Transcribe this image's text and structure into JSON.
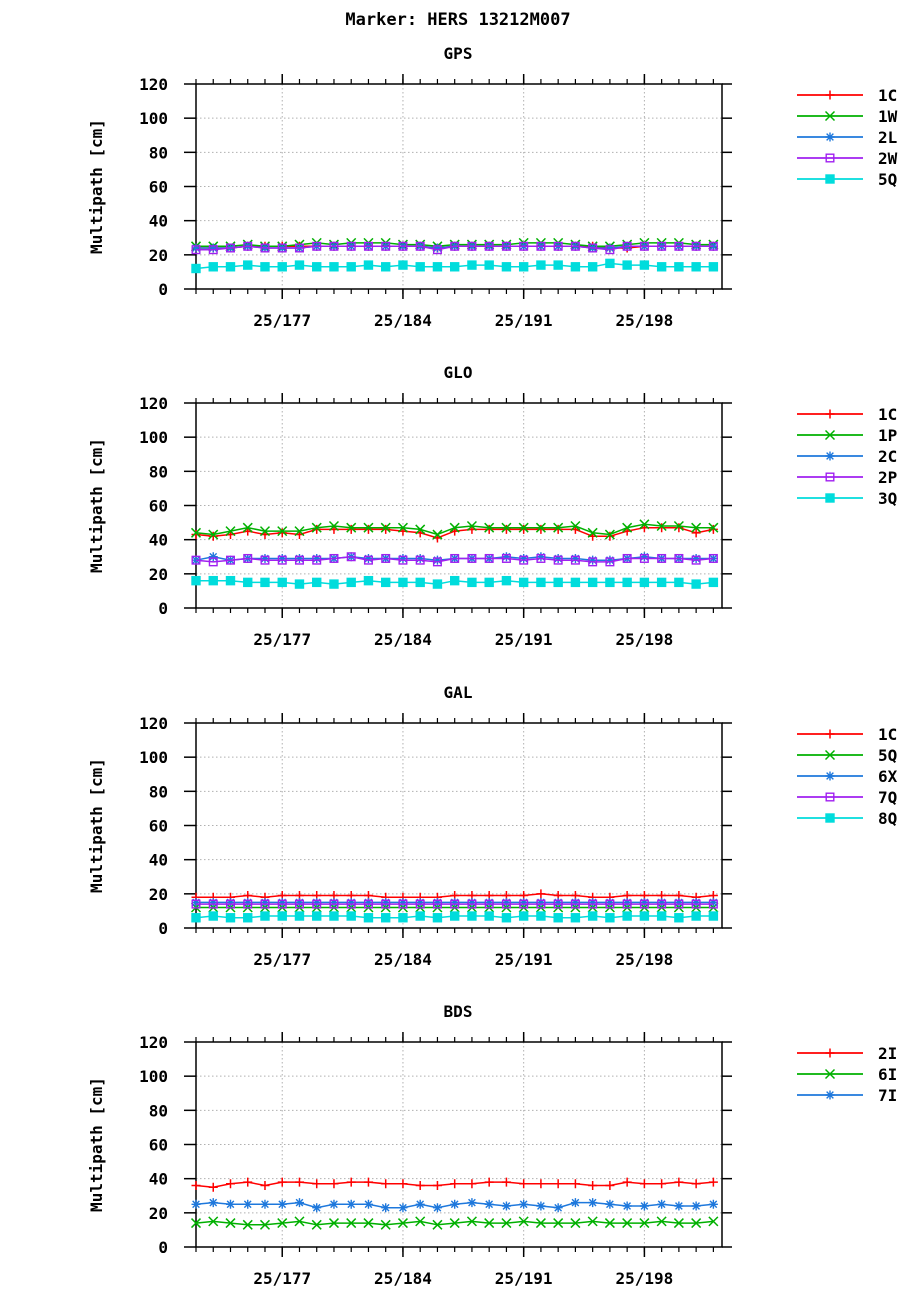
{
  "page_title": "Marker: HERS 13212M007",
  "chart_data": [
    {
      "type": "line",
      "title": "GPS",
      "ylabel": "Multipath [cm]",
      "xlabel": "",
      "ylim": [
        0,
        120
      ],
      "yticks": [
        0,
        20,
        40,
        60,
        80,
        100,
        120
      ],
      "xlim": [
        172,
        202.5
      ],
      "xticks": [
        {
          "value": 177,
          "label": "25/177"
        },
        {
          "value": 184,
          "label": "25/184"
        },
        {
          "value": 191,
          "label": "25/191"
        },
        {
          "value": 198,
          "label": "25/198"
        }
      ],
      "grid": true,
      "legend": "right",
      "x": [
        172,
        173,
        174,
        175,
        176,
        177,
        178,
        179,
        180,
        181,
        182,
        183,
        184,
        185,
        186,
        187,
        188,
        189,
        190,
        191,
        192,
        193,
        194,
        195,
        196,
        197,
        198,
        199,
        200,
        201,
        202
      ],
      "series": [
        {
          "name": "1C",
          "color": "#ff0000",
          "marker": "plus",
          "values": [
            24,
            24,
            24,
            25,
            25,
            25,
            25,
            25,
            25,
            25,
            25,
            25,
            25,
            25,
            24,
            25,
            25,
            25,
            25,
            25,
            25,
            25,
            25,
            25,
            24,
            24,
            25,
            25,
            25,
            25,
            25
          ]
        },
        {
          "name": "1W",
          "color": "#00b000",
          "marker": "x",
          "values": [
            25,
            25,
            25,
            26,
            25,
            25,
            26,
            27,
            26,
            27,
            27,
            27,
            26,
            26,
            25,
            26,
            26,
            26,
            26,
            27,
            27,
            27,
            26,
            25,
            25,
            26,
            27,
            27,
            27,
            26,
            26
          ]
        },
        {
          "name": "2L",
          "color": "#1e78dc",
          "marker": "asterisk",
          "values": [
            24,
            24,
            24,
            25,
            24,
            24,
            24,
            25,
            25,
            25,
            25,
            25,
            25,
            25,
            24,
            25,
            25,
            25,
            25,
            25,
            25,
            25,
            25,
            24,
            24,
            25,
            25,
            25,
            25,
            25,
            25
          ]
        },
        {
          "name": "2W",
          "color": "#a020f0",
          "marker": "square",
          "values": [
            23,
            23,
            24,
            25,
            24,
            24,
            24,
            25,
            25,
            25,
            25,
            25,
            25,
            25,
            23,
            25,
            25,
            25,
            25,
            25,
            25,
            25,
            25,
            24,
            23,
            25,
            25,
            25,
            25,
            25,
            25
          ]
        },
        {
          "name": "5Q",
          "color": "#00dcdc",
          "marker": "filled-square",
          "values": [
            12,
            13,
            13,
            14,
            13,
            13,
            14,
            13,
            13,
            13,
            14,
            13,
            14,
            13,
            13,
            13,
            14,
            14,
            13,
            13,
            14,
            14,
            13,
            13,
            15,
            14,
            14,
            13,
            13,
            13,
            13
          ]
        }
      ]
    },
    {
      "type": "line",
      "title": "GLO",
      "ylabel": "Multipath [cm]",
      "xlabel": "",
      "ylim": [
        0,
        120
      ],
      "yticks": [
        0,
        20,
        40,
        60,
        80,
        100,
        120
      ],
      "xlim": [
        172,
        202.5
      ],
      "xticks": [
        {
          "value": 177,
          "label": "25/177"
        },
        {
          "value": 184,
          "label": "25/184"
        },
        {
          "value": 191,
          "label": "25/191"
        },
        {
          "value": 198,
          "label": "25/198"
        }
      ],
      "grid": true,
      "legend": "right",
      "x": [
        172,
        173,
        174,
        175,
        176,
        177,
        178,
        179,
        180,
        181,
        182,
        183,
        184,
        185,
        186,
        187,
        188,
        189,
        190,
        191,
        192,
        193,
        194,
        195,
        196,
        197,
        198,
        199,
        200,
        201,
        202
      ],
      "series": [
        {
          "name": "1C",
          "color": "#ff0000",
          "marker": "plus",
          "values": [
            43,
            42,
            43,
            45,
            43,
            44,
            43,
            46,
            46,
            46,
            46,
            46,
            45,
            44,
            41,
            45,
            46,
            46,
            46,
            46,
            46,
            46,
            46,
            42,
            42,
            45,
            47,
            47,
            47,
            44,
            46
          ]
        },
        {
          "name": "1P",
          "color": "#00b000",
          "marker": "x",
          "values": [
            44,
            43,
            45,
            47,
            45,
            45,
            45,
            47,
            48,
            47,
            47,
            47,
            47,
            46,
            43,
            47,
            48,
            47,
            47,
            47,
            47,
            47,
            48,
            44,
            43,
            47,
            49,
            48,
            48,
            47,
            47
          ]
        },
        {
          "name": "2C",
          "color": "#1e78dc",
          "marker": "asterisk",
          "values": [
            28,
            30,
            28,
            29,
            29,
            29,
            29,
            29,
            29,
            30,
            29,
            29,
            29,
            29,
            28,
            29,
            29,
            29,
            30,
            29,
            30,
            29,
            29,
            28,
            28,
            29,
            30,
            29,
            29,
            29,
            29
          ]
        },
        {
          "name": "2P",
          "color": "#a020f0",
          "marker": "square",
          "values": [
            28,
            27,
            28,
            29,
            28,
            28,
            28,
            28,
            29,
            30,
            28,
            29,
            28,
            28,
            27,
            29,
            29,
            29,
            29,
            28,
            29,
            28,
            28,
            27,
            27,
            29,
            29,
            29,
            29,
            28,
            29
          ]
        },
        {
          "name": "3Q",
          "color": "#00dcdc",
          "marker": "filled-square",
          "values": [
            16,
            16,
            16,
            15,
            15,
            15,
            14,
            15,
            14,
            15,
            16,
            15,
            15,
            15,
            14,
            16,
            15,
            15,
            16,
            15,
            15,
            15,
            15,
            15,
            15,
            15,
            15,
            15,
            15,
            14,
            15
          ]
        }
      ]
    },
    {
      "type": "line",
      "title": "GAL",
      "ylabel": "Multipath [cm]",
      "xlabel": "",
      "ylim": [
        0,
        120
      ],
      "yticks": [
        0,
        20,
        40,
        60,
        80,
        100,
        120
      ],
      "xlim": [
        172,
        202.5
      ],
      "xticks": [
        {
          "value": 177,
          "label": "25/177"
        },
        {
          "value": 184,
          "label": "25/184"
        },
        {
          "value": 191,
          "label": "25/191"
        },
        {
          "value": 198,
          "label": "25/198"
        }
      ],
      "grid": true,
      "legend": "right",
      "x": [
        172,
        173,
        174,
        175,
        176,
        177,
        178,
        179,
        180,
        181,
        182,
        183,
        184,
        185,
        186,
        187,
        188,
        189,
        190,
        191,
        192,
        193,
        194,
        195,
        196,
        197,
        198,
        199,
        200,
        201,
        202
      ],
      "series": [
        {
          "name": "1C",
          "color": "#ff0000",
          "marker": "plus",
          "values": [
            18,
            18,
            18,
            19,
            18,
            19,
            19,
            19,
            19,
            19,
            19,
            18,
            18,
            18,
            18,
            19,
            19,
            19,
            19,
            19,
            20,
            19,
            19,
            18,
            18,
            19,
            19,
            19,
            19,
            18,
            19
          ]
        },
        {
          "name": "5Q",
          "color": "#00b000",
          "marker": "x",
          "values": [
            12,
            12,
            12,
            12,
            12,
            12,
            12,
            12,
            12,
            12,
            12,
            12,
            12,
            12,
            12,
            12,
            12,
            12,
            12,
            12,
            12,
            12,
            12,
            12,
            12,
            12,
            12,
            12,
            12,
            12,
            12
          ]
        },
        {
          "name": "6X",
          "color": "#1e78dc",
          "marker": "asterisk",
          "values": [
            15,
            15,
            15,
            15,
            15,
            15,
            15,
            15,
            15,
            15,
            15,
            15,
            15,
            15,
            15,
            15,
            15,
            15,
            15,
            15,
            15,
            15,
            15,
            15,
            15,
            15,
            15,
            15,
            15,
            15,
            15
          ]
        },
        {
          "name": "7Q",
          "color": "#a020f0",
          "marker": "square",
          "values": [
            14,
            14,
            14,
            14,
            14,
            14,
            14,
            14,
            14,
            14,
            14,
            14,
            14,
            14,
            14,
            14,
            14,
            14,
            14,
            14,
            14,
            14,
            14,
            14,
            14,
            14,
            14,
            14,
            14,
            14,
            14
          ]
        },
        {
          "name": "8Q",
          "color": "#00dcdc",
          "marker": "filled-square",
          "values": [
            6,
            7,
            6,
            6,
            7,
            7,
            7,
            7,
            7,
            7,
            6,
            6,
            6,
            7,
            6,
            7,
            7,
            7,
            6,
            7,
            7,
            6,
            6,
            7,
            6,
            7,
            7,
            7,
            6,
            7,
            7
          ]
        }
      ]
    },
    {
      "type": "line",
      "title": "BDS",
      "ylabel": "Multipath [cm]",
      "xlabel": "",
      "ylim": [
        0,
        120
      ],
      "yticks": [
        0,
        20,
        40,
        60,
        80,
        100,
        120
      ],
      "xlim": [
        172,
        202.5
      ],
      "xticks": [
        {
          "value": 177,
          "label": "25/177"
        },
        {
          "value": 184,
          "label": "25/184"
        },
        {
          "value": 191,
          "label": "25/191"
        },
        {
          "value": 198,
          "label": "25/198"
        }
      ],
      "grid": true,
      "legend": "right",
      "x": [
        172,
        173,
        174,
        175,
        176,
        177,
        178,
        179,
        180,
        181,
        182,
        183,
        184,
        185,
        186,
        187,
        188,
        189,
        190,
        191,
        192,
        193,
        194,
        195,
        196,
        197,
        198,
        199,
        200,
        201,
        202
      ],
      "series": [
        {
          "name": "2I",
          "color": "#ff0000",
          "marker": "plus",
          "values": [
            36,
            35,
            37,
            38,
            36,
            38,
            38,
            37,
            37,
            38,
            38,
            37,
            37,
            36,
            36,
            37,
            37,
            38,
            38,
            37,
            37,
            37,
            37,
            36,
            36,
            38,
            37,
            37,
            38,
            37,
            38
          ]
        },
        {
          "name": "6I",
          "color": "#00b000",
          "marker": "x",
          "values": [
            14,
            15,
            14,
            13,
            13,
            14,
            15,
            13,
            14,
            14,
            14,
            13,
            14,
            15,
            13,
            14,
            15,
            14,
            14,
            15,
            14,
            14,
            14,
            15,
            14,
            14,
            14,
            15,
            14,
            14,
            15
          ]
        },
        {
          "name": "7I",
          "color": "#1e78dc",
          "marker": "asterisk",
          "values": [
            25,
            26,
            25,
            25,
            25,
            25,
            26,
            23,
            25,
            25,
            25,
            23,
            23,
            25,
            23,
            25,
            26,
            25,
            24,
            25,
            24,
            23,
            26,
            26,
            25,
            24,
            24,
            25,
            24,
            24,
            25
          ]
        }
      ]
    }
  ]
}
